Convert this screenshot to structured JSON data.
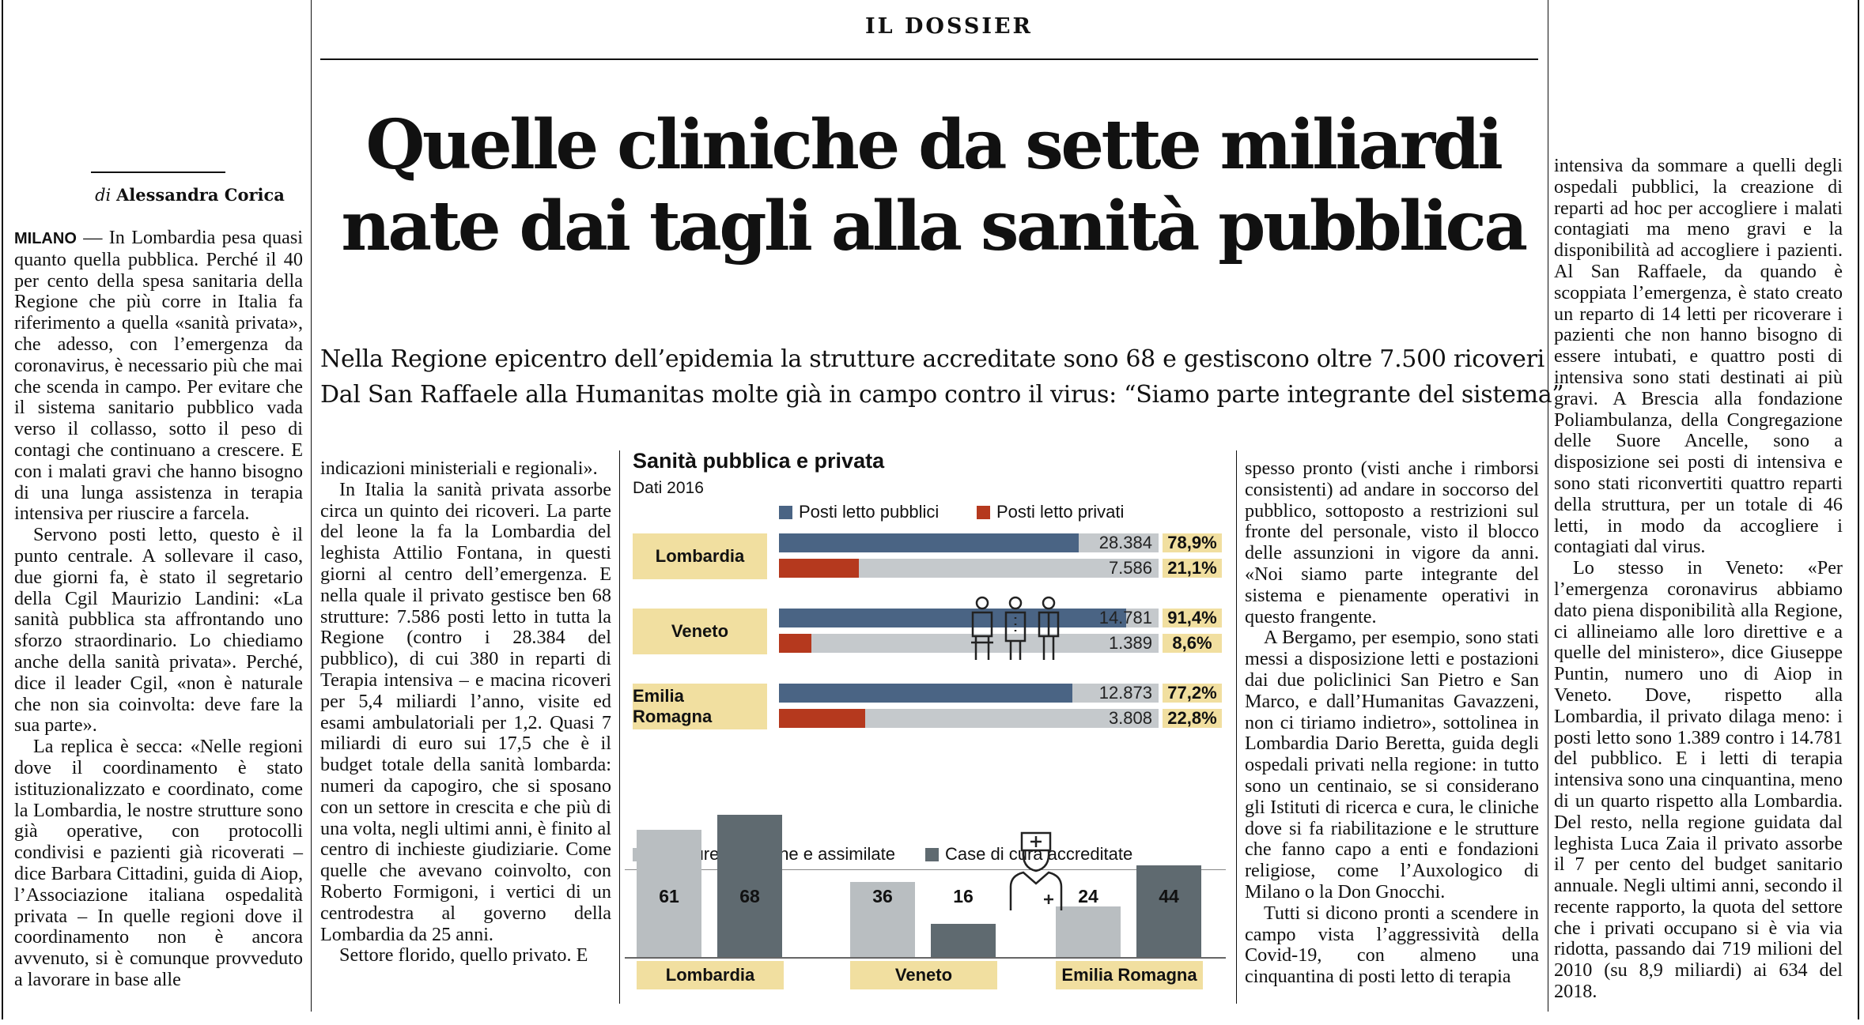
{
  "kicker": "IL DOSSIER",
  "headline": {
    "line1": "Quelle cliniche da sette miliardi",
    "line2": "nate dai tagli alla sanità pubblica"
  },
  "subhead": {
    "line1": "Nella Regione epicentro dell’epidemia la strutture accreditate sono 68 e gestiscono oltre 7.500 ricoveri",
    "line2": "Dal San Raffaele alla Humanitas molte già in campo contro il virus: “Siamo parte integrante del sistema”"
  },
  "byline": {
    "prefix": "di",
    "author": "Alessandra Corica"
  },
  "column1": {
    "dateline": "MILANO",
    "p1": " — In Lombardia pesa quasi quanto quella pubblica. Perché il 40 per cento della spesa sanitaria della Regione che più corre in Italia fa riferimento a quella «sanità privata», che adesso, con l’emergenza da coronavirus, è necessario più che mai che scenda in campo. Per evitare che il sistema sanitario pubblico vada verso il collasso, sotto il peso di contagi che continuano a crescere. E con i malati gravi che hanno bisogno di una lunga assistenza in terapia intensiva per riuscire a farcela.",
    "p2": "Servono posti letto, questo è il punto centrale. A sollevare il caso, due giorni fa, è stato il segretario della Cgil Maurizio Landini: «La sanità pubblica sta affrontando uno sforzo straordinario. Lo chiediamo anche della sanità privata». Perché, dice il leader Cgil, «non è naturale che non sia coinvolta: deve fare la sua parte».",
    "p3": "La replica è secca: «Nelle regioni dove il coordinamento è stato istituzionalizzato e coordinato, come la Lombardia, le nostre strutture sono già operative, con protocolli condivisi e pazienti già ricoverati – dice Barbara Cittadini, guida di Aiop, l’Associazione italiana ospedalità privata – In quelle regioni dove il coordinamento non è ancora avvenuto, si è comunque provveduto a lavorare in base alle"
  },
  "column2": {
    "p1": "indicazioni ministeriali e regionali».",
    "p2": "In Italia la sanità privata assorbe circa un quinto dei ricoveri. La parte del leone la fa la Lombardia del leghista Attilio Fontana, in questi giorni al centro dell’emergenza. E nella quale il privato gestisce ben 68 strutture: 7.586 posti letto in tutta la Regione (contro i 28.384 del pubblico), di cui 380 in reparti di Terapia intensiva – e macina ricoveri per 5,4 miliardi l’anno, visite ed esami ambulatoriali per 1,2. Quasi 7 miliardi di euro sui 17,5 che è il budget totale della sanità lombarda: numeri da capogiro, che si sposano con un settore in crescita e che più di una volta, negli ultimi anni, è finito al centro di inchieste giudiziarie. Come quelle che avevano coinvolto, con Roberto Formigoni, i vertici di un centrodestra al governo della Lombardia da 25 anni.",
    "p3": "Settore florido, quello privato. E"
  },
  "column4": {
    "p1": "spesso pronto (visti anche i rimborsi consistenti) ad andare in soccorso del pubblico, sottoposto a restrizioni sul fronte del personale, visto il blocco delle assunzioni in vigore da anni. «Noi siamo parte integrante del sistema e pienamente operativi in questo frangente.",
    "p2": "A Bergamo, per esempio, sono stati messi a disposizione letti e postazioni dai due policlinici San Pietro e San Marco, e dall’Humanitas Gavazzeni, non ci tiriamo indietro», sottolinea in Lombardia Dario Beretta, guida degli ospedali privati nella regione: in tutto sono un centinaio, se si considerano gli Istituti di ricerca e cura, le cliniche dove si fa riabilitazione e le strutture che fanno capo a enti e fondazioni religiose, come l’Auxologico di Milano o la Don Gnocchi.",
    "p3": "Tutti si dicono pronti a scendere in campo vista l’aggressività della Covid-19, con almeno una cinquantina di posti letto di terapia"
  },
  "column5": {
    "p1": "intensiva da sommare a quelli degli ospedali pubblici, la creazione di reparti ad hoc per accogliere i malati contagiati ma meno gravi e la disponibilità ad accogliere i pazienti. Al San Raffaele, da quando è scoppiata l’emergenza, è stato creato un reparto di 14 letti per ricoverare i pazienti che non hanno bisogno di essere intubati, e quattro posti di intensiva sono stati destinati ai più gravi. A Brescia alla fondazione Poliambulanza, della Congregazione delle Suore Ancelle, sono a disposizione sei posti di intensiva e sono stati riconvertiti quattro reparti della struttura, per un totale di 46 letti, in modo da accogliere i contagiati dal virus.",
    "p2": "Lo stesso in Veneto: «Per l’emergenza coronavirus abbiamo dato piena disponibilità alla Regione, ci allineiamo alle loro direttive e a quelle del ministero», dice Giuseppe Puntin, numero uno di Aiop in Veneto. Dove, rispetto alla Lombardia, il privato dilaga meno: i posti letto sono 1.389 contro i 14.781 del pubblico. E i letti di terapia intensiva sono una cinquantina, meno di un quarto rispetto alla Lombardia. Del resto, nella regione guidata dal leghista Luca Zaia il privato assorbe il 7 per cento del budget sanitario annuale. Negli ultimi anni, secondo il recente rapporto, la quota del settore che i privati occupano si è via via ridotta, passando dai 719 milioni del 2010 (su 8,9 miliardi) ai 634 del 2018."
  },
  "infographic": {
    "title": "Sanità pubblica e privata",
    "subtitle": "Dati 2016",
    "legend_beds": [
      "Posti letto pubblici",
      "Posti letto privati"
    ],
    "legend_structures": [
      "Strutture pubbliche e assimilate",
      "Case di cura accreditate"
    ],
    "colors": {
      "public_beds": "#4a6484",
      "private_beds": "#b5391e",
      "track": "#c5c9cc",
      "public_structures": "#b9bec1",
      "private_structures": "#5f6a70",
      "label_bg": "#f1dfa0"
    }
  },
  "chart_data": [
    {
      "type": "bar",
      "title": "Sanità pubblica e privata",
      "subtitle": "Dati 2016",
      "categories": [
        "Lombardia",
        "Veneto",
        "Emilia Romagna"
      ],
      "series": [
        {
          "name": "Posti letto pubblici",
          "values": [
            28384,
            14781,
            12873
          ],
          "labels": [
            "28.384",
            "14.781",
            "12.873"
          ],
          "pct": [
            78.9,
            91.4,
            77.2
          ],
          "pct_labels": [
            "78,9%",
            "91,4%",
            "77,2%"
          ]
        },
        {
          "name": "Posti letto privati",
          "values": [
            7586,
            1389,
            3808
          ],
          "labels": [
            "7.586",
            "1.389",
            "3.808"
          ],
          "pct": [
            21.1,
            8.6,
            22.8
          ],
          "pct_labels": [
            "21,1%",
            "8,6%",
            "22,8%"
          ]
        }
      ]
    },
    {
      "type": "bar",
      "categories": [
        "Lombardia",
        "Veneto",
        "Emilia Romagna"
      ],
      "series": [
        {
          "name": "Strutture pubbliche e assimilate",
          "values": [
            61,
            36,
            24
          ]
        },
        {
          "name": "Case di cura accreditate",
          "values": [
            68,
            16,
            44
          ]
        }
      ],
      "ylim": [
        0,
        70
      ]
    }
  ]
}
